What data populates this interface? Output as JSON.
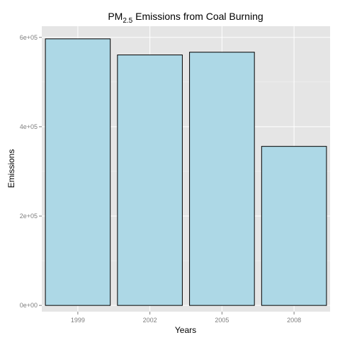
{
  "chart_data": {
    "type": "bar",
    "title": {
      "prefix": "PM",
      "subscript": "2.5",
      "suffix": " Emissions from Coal Burning"
    },
    "xlabel": "Years",
    "ylabel": "Emissions",
    "categories": [
      "1999",
      "2002",
      "2005",
      "2008"
    ],
    "values": [
      596700,
      560700,
      566800,
      356000
    ],
    "ylim": [
      -14000,
      625000
    ],
    "yticks": [
      0,
      200000,
      400000,
      600000
    ],
    "ytick_labels": [
      "0e+00",
      "2e+05",
      "4e+05",
      "6e+05"
    ],
    "grid": true,
    "colors": {
      "panel_background": "#e5e5e5",
      "grid": "#ffffff",
      "bar_fill": "#add8e6",
      "bar_outline": "#000000",
      "tick_text": "#7f7f7f"
    }
  }
}
